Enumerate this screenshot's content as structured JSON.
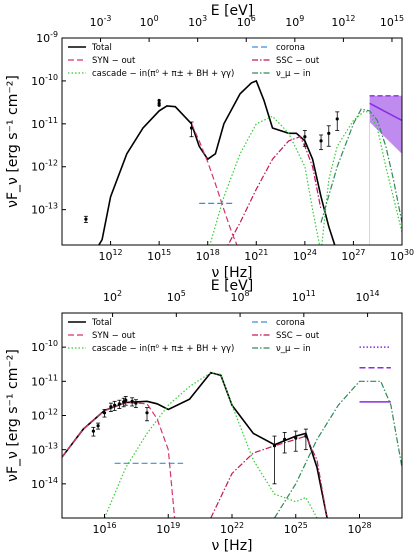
{
  "chart_data": [
    {
      "type": "line",
      "xlabel": "ν [Hz]",
      "ylabel": "νF_ν [erg s⁻¹ cm⁻²]",
      "top_xlabel": "E [eV]",
      "xscale": "log",
      "yscale": "log",
      "xlim": [
        1000000000.0,
        1e+30
      ],
      "ylim": [
        1.5e-14,
        1e-09
      ],
      "x_ticks": [
        "10^12",
        "10^15",
        "10^18",
        "10^21",
        "10^24",
        "10^27",
        "10^30"
      ],
      "top_ticks": [
        "10^-3",
        "10^0",
        "10^3",
        "10^6",
        "10^9",
        "10^12",
        "10^15"
      ],
      "y_ticks": [
        "10^-13",
        "10^-12",
        "10^-11",
        "10^-10",
        "10^-9"
      ],
      "legend": [
        "Total",
        "SYN − out",
        "cascade − in(π⁰ + π± + BH + γγ)",
        "corona",
        "SSC − out",
        "ν_μ − in"
      ],
      "series": [
        {
          "name": "Total",
          "color": "#000000",
          "style": "solid",
          "x": [
            100000000000.0,
            300000000000.0,
            1000000000000.0,
            10000000000000.0,
            100000000000000.0,
            1000000000000000.0,
            3000000000000000.0,
            1e+16,
            1e+17,
            3e+17,
            1e+18,
            3e+18,
            1e+19,
            1e+20,
            5e+20,
            1e+21,
            3e+21,
            1e+22,
            1e+23,
            3e+23,
            1e+24,
            3e+24,
            1e+25,
            3e+25,
            1e+26
          ],
          "y": [
            1e-14,
            2e-14,
            2e-13,
            2e-12,
            8e-12,
            2e-11,
            2.6e-11,
            2.5e-11,
            1e-11,
            3e-12,
            1.5e-12,
            2e-12,
            1e-11,
            5e-11,
            9e-11,
            1e-10,
            3.5e-11,
            8e-12,
            6e-12,
            6e-12,
            4e-12,
            1.5e-12,
            2e-13,
            4e-14,
            1e-14
          ]
        },
        {
          "name": "SYN − out",
          "color": "#d6336c",
          "style": "dashed",
          "x": [
            1e+17,
            3e+17,
            1e+18,
            3e+18,
            1e+19,
            3e+19,
            1e+20
          ],
          "y": [
            1e-11,
            4e-12,
            1.3e-12,
            4e-13,
            1e-13,
            3e-14,
            1e-14
          ]
        },
        {
          "name": "SSC − out",
          "color": "#c2185b",
          "style": "dashdot",
          "x": [
            1e+19,
            1e+20,
            1e+21,
            1e+22,
            1e+23,
            5e+23,
            1e+24,
            3e+24,
            1e+25
          ],
          "y": [
            1e-14,
            5e-14,
            3e-13,
            1.5e-12,
            4e-12,
            5e-12,
            3e-12,
            1e-12,
            1e-13
          ]
        },
        {
          "name": "cascade − in(π⁰ + π± + BH + γγ)",
          "color": "#33cc33",
          "style": "dotted",
          "x": [
            1e+18,
            1e+19,
            1e+20,
            1e+21,
            1e+22,
            1e+23,
            1e+24,
            3e+24,
            1e+25,
            3e+25,
            1e+26,
            1e+27,
            5e+27,
            1e+28,
            3e+28,
            1e+29,
            1e+30
          ],
          "y": [
            1e-14,
            2e-13,
            2e-12,
            1e-11,
            1.5e-11,
            6e-12,
            1e-12,
            1e-13,
            1e-14,
            5e-13,
            3e-12,
            1.2e-11,
            2e-11,
            1.8e-11,
            8e-12,
            1e-12,
            3e-14
          ]
        },
        {
          "name": "ν_μ − in",
          "color": "#2e8b57",
          "style": "dashdot",
          "x": [
            1e+25,
            1e+26,
            1e+27,
            3e+27,
            1e+28,
            3e+28,
            1e+29,
            3e+29,
            1e+30
          ],
          "y": [
            5e-14,
            1e-12,
            1e-11,
            2.2e-11,
            2e-11,
            1.2e-11,
            3e-12,
            5e-13,
            5e-14
          ]
        },
        {
          "name": "corona",
          "color": "#3c8dde",
          "style": "dashed",
          "x": [
            3e+17,
            5e+19
          ],
          "y": [
            1.4e-13,
            1.4e-13
          ]
        }
      ],
      "data_points": {
        "x": [
          30000000000.0,
          1000000000000000.0,
          1000000000000000.0,
          1000000000000000.0,
          1e+17,
          1e+24,
          1e+25,
          3e+25,
          1e+26
        ],
        "y": [
          6e-14,
          3.5e-11,
          3e-11,
          2.7e-11,
          8e-12,
          5e-12,
          4e-12,
          6e-12,
          1.3e-11
        ],
        "yerr_lo": [
          1e-14,
          0,
          0,
          0,
          3e-12,
          2e-12,
          1.5e-12,
          3e-12,
          6e-12
        ],
        "yerr_hi": [
          1e-14,
          0,
          0,
          0,
          3e-12,
          2e-12,
          1.5e-12,
          3e-12,
          6e-12
        ]
      },
      "band": {
        "name": "ν_μ − in band",
        "color": "#8a2be2",
        "x": [
          1e+28,
          1e+30
        ],
        "y_low": [
          1.1e-11,
          2e-12
        ],
        "y_high": [
          4.5e-11,
          4.5e-11
        ],
        "y_mid": [
          3e-11,
          1.2e-11
        ]
      }
    },
    {
      "type": "line",
      "xlabel": "ν [Hz]",
      "ylabel": "νF_ν [erg s⁻¹ cm⁻²]",
      "top_xlabel": "E [eV]",
      "xscale": "log",
      "yscale": "log",
      "xlim": [
        100000000000000.0,
        1e+30
      ],
      "ylim": [
        1e-15,
        1e-09
      ],
      "x_ticks": [
        "10^16",
        "10^19",
        "10^22",
        "10^25",
        "10^28"
      ],
      "top_ticks": [
        "10^2",
        "10^5",
        "10^8",
        "10^11",
        "10^14"
      ],
      "y_ticks": [
        "10^-14",
        "10^-13",
        "10^-12",
        "10^-11",
        "10^-10"
      ],
      "legend": [
        "Total",
        "SYN − out",
        "cascade − in(π⁰ + π± + BH + γγ)",
        "corona",
        "SSC − out",
        "ν_μ − in"
      ],
      "series": [
        {
          "name": "Total",
          "color": "#000000",
          "style": "solid",
          "x": [
            100000000000000.0,
            1000000000000000.0,
            1e+16,
            1e+17,
            1e+18,
            3e+18,
            1e+19,
            1e+20,
            1e+21,
            3e+21,
            1e+22,
            1e+23,
            1e+24,
            1e+25,
            3e+25,
            1e+26,
            3e+26
          ],
          "y": [
            6e-14,
            4e-13,
            1.4e-12,
            2.4e-12,
            2.6e-12,
            2.2e-12,
            1.5e-12,
            3e-12,
            1.8e-11,
            1.5e-11,
            2e-12,
            3e-13,
            1.4e-13,
            2.5e-13,
            3e-13,
            3e-14,
            1e-15
          ]
        },
        {
          "name": "SYN − out",
          "color": "#d6336c",
          "style": "dashed",
          "x": [
            100000000000000.0,
            1000000000000000.0,
            1e+16,
            1e+17,
            1e+18,
            3e+18,
            1e+19,
            2e+19
          ],
          "y": [
            6e-14,
            4e-13,
            1.4e-12,
            2.4e-12,
            2.2e-12,
            8e-13,
            1e-13,
            1e-15
          ]
        },
        {
          "name": "SSC − out",
          "color": "#c2185b",
          "style": "dashdot",
          "x": [
            1e+21,
            1e+22,
            1e+23,
            1e+24,
            1e+25,
            3e+25,
            1e+26,
            3e+26
          ],
          "y": [
            1e-15,
            2e-14,
            8e-14,
            1.3e-13,
            2e-13,
            2.5e-13,
            5e-14,
            1e-15
          ]
        },
        {
          "name": "cascade − in(π⁰ + π± + BH + γγ)",
          "color": "#33cc33",
          "style": "dotted",
          "x": [
            1e+16,
            1e+17,
            1e+18,
            1e+19,
            1e+20,
            1e+21,
            3e+21,
            1e+22,
            1e+23,
            1e+24,
            1e+25,
            3e+25,
            1e+26
          ],
          "y": [
            1e-15,
            3e-14,
            3e-13,
            2e-12,
            7e-12,
            1.8e-11,
            1.6e-11,
            2e-12,
            5e-14,
            5e-15,
            3e-15,
            4e-15,
            1e-15
          ]
        },
        {
          "name": "ν_μ − in",
          "color": "#2e8b57",
          "style": "dashdot",
          "x": [
            1e+24,
            1e+25,
            1e+26,
            1e+27,
            1e+28,
            1e+29,
            3e+29,
            1e+30
          ],
          "y": [
            1e-15,
            1e-14,
            2e-13,
            2e-12,
            1e-11,
            1e-11,
            2e-12,
            3e-14
          ]
        },
        {
          "name": "corona",
          "color": "#3c8dde",
          "style": "dashed",
          "x": [
            3e+16,
            5e+19
          ],
          "y": [
            4e-14,
            4e-14
          ]
        }
      ],
      "data_points": {
        "x": [
          3000000000000000.0,
          5000000000000000.0,
          1e+16,
          2e+16,
          3e+16,
          5e+16,
          8e+16,
          1e+17,
          2e+17,
          3e+17,
          1e+18,
          1e+24,
          3e+24,
          1e+25,
          3e+25
        ],
        "y": [
          3.5e-13,
          5e-13,
          1.2e-12,
          1.8e-12,
          2e-12,
          2.2e-12,
          2.5e-12,
          2.8e-12,
          2.6e-12,
          2.3e-12,
          1.2e-12,
          1.3e-13,
          2e-13,
          2.2e-13,
          2.5e-13
        ],
        "yerr_lo": [
          1e-13,
          1e-13,
          3e-13,
          5e-13,
          6e-13,
          6e-13,
          7e-13,
          8e-13,
          7e-13,
          6e-13,
          5e-13,
          1.2e-13,
          1.2e-13,
          1.3e-13,
          1.5e-13
        ],
        "yerr_hi": [
          1e-13,
          1e-13,
          3e-13,
          5e-13,
          6e-13,
          6e-13,
          7e-13,
          8e-13,
          7e-13,
          6e-13,
          5e-13,
          1.2e-13,
          1.2e-13,
          1.3e-13,
          1.5e-13
        ]
      },
      "limits": [
        {
          "color": "#8a2be2",
          "style": "dotted",
          "x": [
            1e+28,
            3e+29
          ],
          "y": 1e-10
        },
        {
          "color": "#8a2be2",
          "style": "dashed",
          "x": [
            1e+28,
            3e+29
          ],
          "y": 2.5e-11
        },
        {
          "color": "#8a2be2",
          "style": "solid",
          "x": [
            1e+28,
            3e+29
          ],
          "y": 2.5e-12
        }
      ]
    }
  ]
}
